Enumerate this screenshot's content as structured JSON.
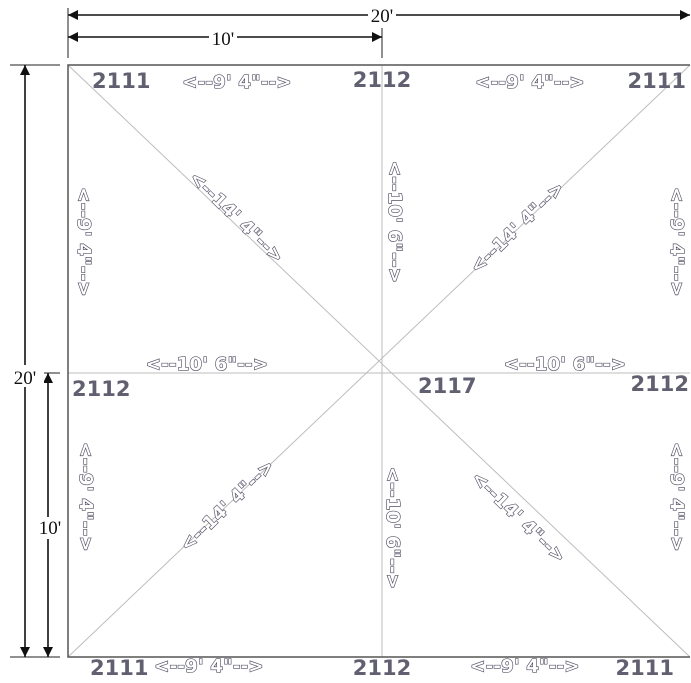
{
  "dimensions": {
    "top_total": "20'",
    "top_half": "10'",
    "left_total": "20'",
    "left_half": "10'"
  },
  "panel_codes": {
    "top_left": "2111",
    "top_mid": "2112",
    "top_right": "2111",
    "mid_left": "2112",
    "center": "2117",
    "mid_right": "2112",
    "bottom_left": "2111",
    "bottom_mid": "2112",
    "bottom_right": "2111"
  },
  "edge_lengths": {
    "top_left_edge": "<--9' 4\"-->",
    "top_right_edge": "<--9' 4\"-->",
    "bottom_left_edge": "<--9' 4\"-->",
    "bottom_right_edge": "<--9' 4\"-->",
    "left_upper_edge": "<--9' 4\"-->",
    "left_lower_edge": "<--9' 4\"-->",
    "right_upper_edge": "<--9' 4\"-->",
    "right_lower_edge": "<--9' 4\"-->",
    "mid_upper_vertical": "<--10' 6\"-->",
    "mid_lower_vertical": "<--10' 6\"-->",
    "mid_left_horizontal": "<--10' 6\"-->",
    "mid_right_horizontal": "<--10' 6\"-->",
    "diag_upper_left": "<--14' 4\"-->",
    "diag_upper_right": "<--14' 4\"-->",
    "diag_lower_left": "<--14' 4\"-->",
    "diag_lower_right": "<--14' 4\"-->"
  }
}
